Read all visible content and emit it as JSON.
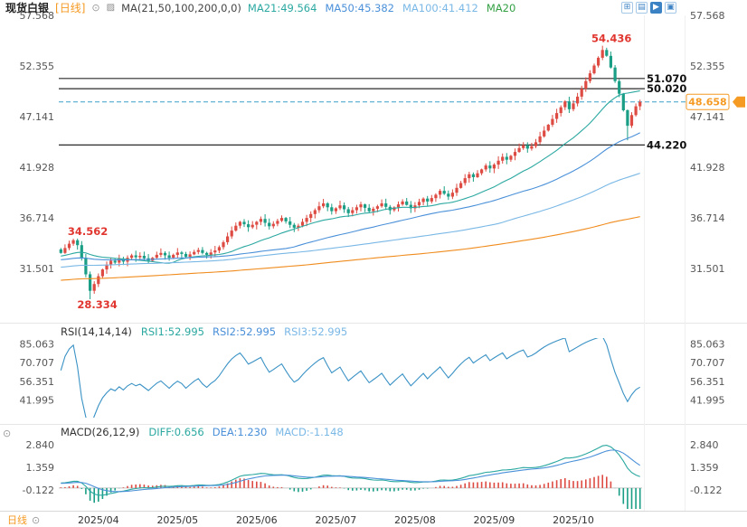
{
  "colors": {
    "up": "#dd4b42",
    "down": "#1a9e85",
    "ma21": "#2ba8a0",
    "ma50": "#4a90d9",
    "ma100": "#7ab8e6",
    "ma200": "#f08c1e",
    "accent_orange": "#f59a23",
    "annotation_red": "#e0362f",
    "dashed_line": "#3a9fc8",
    "hline": "#2a2a2a",
    "axis_text": "#555555",
    "rsi_line": "#3a92c5",
    "diff_line": "#2ba8a0",
    "dea_line": "#4a90d9"
  },
  "header": {
    "symbol": "现货白银",
    "period_tag": "[日线]",
    "settings_icon": "⊙",
    "ma_icon": "▨",
    "ma_settings": "MA(21,50,100,200,0,0)",
    "ma_values": [
      {
        "label": "MA21:49.564",
        "color": "#2ba8a0"
      },
      {
        "label": "MA50:45.382",
        "color": "#4a90d9"
      },
      {
        "label": "MA100:41.412",
        "color": "#7ab8e6"
      },
      {
        "label": "MA20",
        "color": "#33a043"
      }
    ],
    "toolbar": [
      {
        "name": "grid-layout-icon",
        "glyph": "⊞",
        "active": false
      },
      {
        "name": "indicator-panel-icon",
        "glyph": "▤",
        "active": false
      },
      {
        "name": "chart-style-icon",
        "glyph": "▶",
        "active": true
      },
      {
        "name": "fullscreen-icon",
        "glyph": "▣",
        "active": false
      }
    ]
  },
  "rsi_header": {
    "title": "RSI(14,14,14)",
    "values": [
      {
        "label": "RSI1:52.995",
        "color": "#2ba8a0"
      },
      {
        "label": "RSI2:52.995",
        "color": "#4a90d9"
      },
      {
        "label": "RSI3:52.995",
        "color": "#7ab8e6"
      }
    ]
  },
  "macd_header": {
    "settings_icon": "⊙",
    "title": "MACD(26,12,9)",
    "values": [
      {
        "label": "DIFF:0.656",
        "color": "#2ba8a0"
      },
      {
        "label": "DEA:1.230",
        "color": "#4a90d9"
      },
      {
        "label": "MACD:-1.148",
        "color": "#7ab8e6"
      }
    ]
  },
  "footer": {
    "period_label": "日线",
    "settings_icon": "⊙"
  },
  "chart_data": {
    "type": "candlestick",
    "symbol": "现货白银",
    "interval": "日线",
    "x_labels": [
      "2025/04",
      "2025/05",
      "2025/06",
      "2025/07",
      "2025/08",
      "2025/09",
      "2025/10"
    ],
    "x_label_indices": [
      9,
      28,
      47,
      66,
      85,
      104,
      123
    ],
    "main": {
      "yticks": [
        "57.568",
        "52.355",
        "47.141",
        "41.928",
        "36.714",
        "31.501"
      ],
      "ylim": [
        26.75,
        57.568
      ],
      "closes": [
        33.1,
        33.6,
        34.05,
        34.4,
        33.9,
        32.6,
        30.9,
        29.2,
        29.9,
        30.7,
        31.4,
        31.9,
        32.3,
        32.1,
        32.5,
        32.2,
        32.6,
        32.85,
        32.65,
        32.8,
        32.55,
        32.3,
        32.6,
        32.9,
        33.1,
        32.85,
        32.6,
        32.9,
        33.15,
        33.0,
        32.7,
        32.95,
        33.2,
        33.4,
        33.1,
        32.9,
        33.15,
        33.35,
        33.7,
        34.2,
        34.8,
        35.4,
        35.9,
        36.3,
        36.05,
        35.75,
        36.0,
        36.3,
        36.6,
        36.2,
        35.85,
        36.1,
        36.4,
        36.7,
        36.35,
        36.0,
        35.7,
        35.9,
        36.3,
        36.7,
        37.1,
        37.5,
        37.9,
        38.2,
        37.8,
        37.4,
        37.7,
        38.0,
        37.6,
        37.2,
        37.5,
        37.8,
        38.1,
        37.75,
        37.4,
        37.65,
        37.9,
        38.2,
        37.85,
        37.5,
        37.8,
        38.1,
        38.4,
        38.05,
        37.7,
        38.0,
        38.35,
        38.7,
        38.4,
        38.75,
        39.1,
        39.5,
        39.2,
        38.9,
        39.3,
        39.8,
        40.3,
        40.8,
        41.2,
        40.9,
        41.3,
        41.7,
        42.1,
        41.8,
        42.2,
        42.6,
        43.0,
        42.7,
        43.1,
        43.5,
        43.9,
        44.2,
        43.85,
        44.1,
        44.5,
        45.1,
        45.7,
        46.3,
        46.9,
        47.5,
        48.1,
        48.7,
        47.9,
        48.5,
        49.2,
        50.0,
        50.8,
        51.6,
        52.4,
        53.2,
        54.0,
        53.4,
        52.2,
        50.8,
        49.5,
        47.8,
        46.2,
        47.3,
        48.2,
        48.658
      ],
      "warmup": {
        "count": 200,
        "start": 27.5,
        "slope": 0.0275,
        "wave": 6,
        "amp": 0.5
      },
      "wick_overrides": {
        "3": {
          "high": 34.562
        },
        "7": {
          "low": 28.334
        },
        "130": {
          "high": 54.436
        },
        "136": {
          "low": 44.7
        }
      },
      "ma_periods": [
        21,
        50,
        100,
        200
      ],
      "hlines": [
        {
          "value": 51.07,
          "label": "51.070"
        },
        {
          "value": 50.02,
          "label": "50.020"
        },
        {
          "value": 44.22,
          "label": "44.220"
        }
      ],
      "last_price": {
        "value": 48.658,
        "label": "48.658"
      },
      "annotations": [
        {
          "index": 3,
          "value": 34.562,
          "text": "34.562",
          "placement": "above",
          "dx": 16
        },
        {
          "index": 7,
          "value": 28.334,
          "text": "28.334",
          "placement": "below",
          "dx": 8
        },
        {
          "index": 130,
          "value": 54.436,
          "text": "54.436",
          "placement": "above",
          "dx": 10
        }
      ]
    },
    "rsi": {
      "period": 14,
      "yticks": [
        "85.063",
        "70.707",
        "56.351",
        "41.995"
      ],
      "ylim": [
        28.45,
        89.58
      ]
    },
    "macd": {
      "fast": 12,
      "slow": 26,
      "signal": 9,
      "yticks": [
        "2.840",
        "1.359",
        "-0.122"
      ],
      "ylim": [
        -1.366,
        3.2547
      ]
    }
  }
}
